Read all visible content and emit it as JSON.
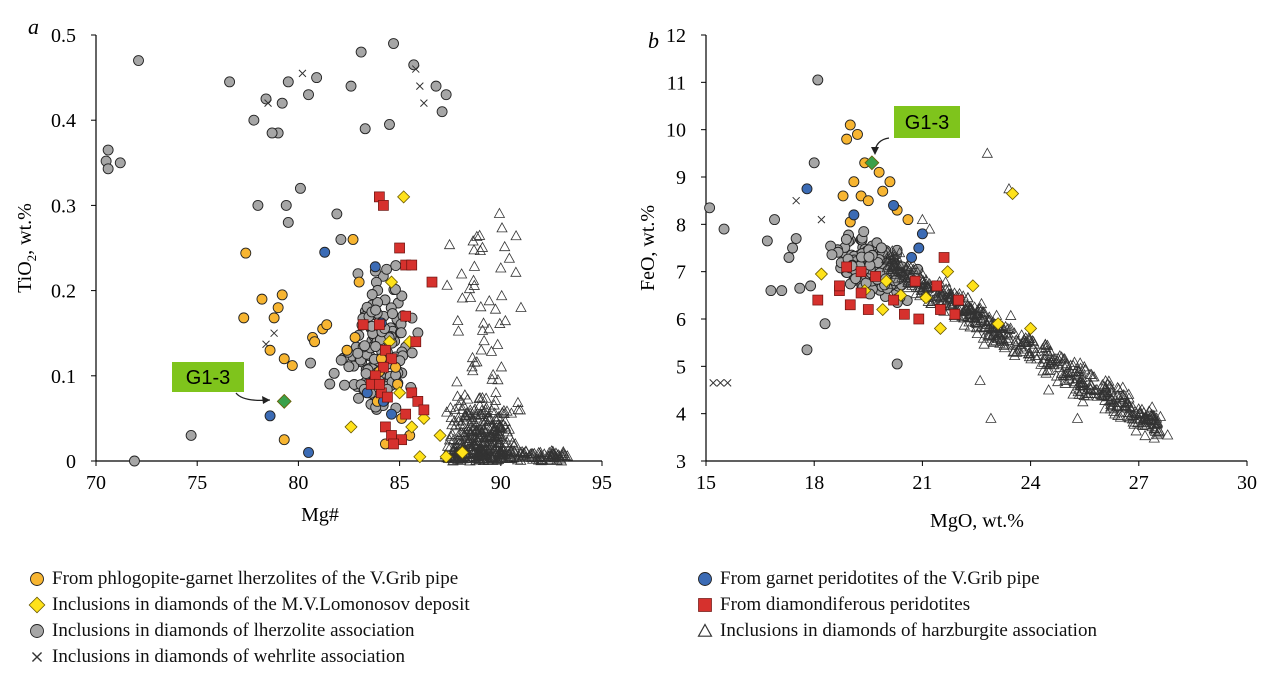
{
  "colors": {
    "orange": "#f7b531",
    "yellow": "#ffe21a",
    "gray": "#a6a6a6",
    "blue": "#3b6bb5",
    "red": "#d6312d",
    "green": "#3aa04a",
    "callout_bg": "#7fc41c",
    "marker_edge": "#222222"
  },
  "panels": [
    {
      "letter": "a",
      "callout": "G1-3",
      "xlabel": "Mg#",
      "ylabel_main": "TiO",
      "ylabel_sub": "2",
      "ylabel_rest": ", wt.%"
    },
    {
      "letter": "b",
      "callout": "G1-3",
      "xlabel": "MgO, wt.%",
      "ylabel_main": "FeO, wt.%",
      "ylabel_sub": "",
      "ylabel_rest": ""
    }
  ],
  "legend": {
    "left": [
      {
        "icon": "orange-circle-icon",
        "marker": "circle",
        "color": "orange",
        "label": "From phlogopite-garnet lherzolites of the V.Grib pipe"
      },
      {
        "icon": "yellow-diamond-icon",
        "marker": "diamond",
        "color": "yellow",
        "label": "Inclusions in diamonds of the M.V.Lomonosov deposit"
      },
      {
        "icon": "gray-circle-icon",
        "marker": "circle",
        "color": "gray",
        "label": "Inclusions in diamonds of lherzolite association"
      },
      {
        "icon": "cross-icon",
        "marker": "cross",
        "color": "marker_edge",
        "label": "Inclusions in diamonds of wehrlite association"
      }
    ],
    "right": [
      {
        "icon": "blue-circle-icon",
        "marker": "circle",
        "color": "blue",
        "label": "From garnet peridotites of the V.Grib pipe"
      },
      {
        "icon": "red-square-icon",
        "marker": "square",
        "color": "red",
        "label": "From diamondiferous peridotites"
      },
      {
        "icon": "triangle-icon",
        "marker": "triangle",
        "color": "marker_edge",
        "label": "Inclusions in diamonds of harzburgite association"
      }
    ]
  },
  "chart_data": [
    {
      "type": "scatter",
      "panel": "a",
      "xlabel": "Mg#",
      "ylabel": "TiO2, wt.%",
      "xlim": [
        70,
        95
      ],
      "ylim": [
        0,
        0.5
      ],
      "xticks": [
        "70",
        "75",
        "80",
        "85",
        "90",
        "95"
      ],
      "yticks": [
        "0",
        "0.1",
        "0.2",
        "0.3",
        "0.4",
        "0.5"
      ],
      "grid": false,
      "series": [
        {
          "name": "From phlogopite-garnet lherzolites of the V.Grib pipe",
          "marker": "circle",
          "color": "orange",
          "points": [
            [
              77.4,
              0.244
            ],
            [
              77.3,
              0.168
            ],
            [
              78.2,
              0.19
            ],
            [
              78.8,
              0.168
            ],
            [
              79.2,
              0.195
            ],
            [
              79.0,
              0.18
            ],
            [
              79.3,
              0.12
            ],
            [
              79.7,
              0.112
            ],
            [
              78.6,
              0.13
            ],
            [
              80.7,
              0.145
            ],
            [
              80.8,
              0.14
            ],
            [
              81.2,
              0.155
            ],
            [
              81.4,
              0.16
            ],
            [
              82.4,
              0.13
            ],
            [
              82.7,
              0.26
            ],
            [
              83.0,
              0.21
            ],
            [
              79.3,
              0.025
            ],
            [
              82.8,
              0.145
            ],
            [
              84.1,
              0.12
            ],
            [
              83.6,
              0.09
            ],
            [
              84.8,
              0.11
            ],
            [
              84.3,
              0.02
            ],
            [
              85.5,
              0.03
            ],
            [
              84.0,
              0.105
            ],
            [
              83.9,
              0.07
            ],
            [
              84.3,
              0.13
            ],
            [
              85.1,
              0.05
            ],
            [
              84.9,
              0.09
            ]
          ]
        },
        {
          "name": "From garnet peridotites of the V.Grib pipe",
          "marker": "circle",
          "color": "blue",
          "points": [
            [
              81.3,
              0.245
            ],
            [
              83.8,
              0.228
            ],
            [
              84.1,
              0.162
            ],
            [
              80.5,
              0.01
            ],
            [
              78.6,
              0.053
            ],
            [
              84.2,
              0.07
            ],
            [
              84.6,
              0.055
            ],
            [
              83.4,
              0.08
            ]
          ]
        },
        {
          "name": "Inclusions in diamonds of the M.V.Lomonosov deposit",
          "marker": "diamond",
          "color": "yellow",
          "points": [
            [
              85.2,
              0.31
            ],
            [
              84.6,
              0.21
            ],
            [
              84.5,
              0.14
            ],
            [
              85.5,
              0.14
            ],
            [
              85.0,
              0.08
            ],
            [
              86.2,
              0.05
            ],
            [
              85.6,
              0.04
            ],
            [
              87.0,
              0.03
            ],
            [
              86.0,
              0.005
            ],
            [
              87.3,
              0.005
            ],
            [
              82.6,
              0.04
            ],
            [
              88.1,
              0.01
            ]
          ]
        },
        {
          "name": "From diamondiferous peridotites",
          "marker": "square",
          "color": "red",
          "points": [
            [
              84.0,
              0.31
            ],
            [
              84.2,
              0.3
            ],
            [
              85.0,
              0.25
            ],
            [
              85.3,
              0.23
            ],
            [
              85.6,
              0.23
            ],
            [
              86.6,
              0.21
            ],
            [
              83.2,
              0.16
            ],
            [
              84.0,
              0.16
            ],
            [
              85.3,
              0.17
            ],
            [
              84.3,
              0.13
            ],
            [
              84.6,
              0.12
            ],
            [
              85.8,
              0.14
            ],
            [
              84.2,
              0.11
            ],
            [
              83.8,
              0.1
            ],
            [
              83.6,
              0.09
            ],
            [
              84.1,
              0.08
            ],
            [
              85.6,
              0.08
            ],
            [
              85.9,
              0.07
            ],
            [
              86.2,
              0.06
            ],
            [
              85.3,
              0.055
            ],
            [
              84.3,
              0.04
            ],
            [
              84.6,
              0.03
            ],
            [
              85.1,
              0.025
            ],
            [
              84.7,
              0.02
            ],
            [
              84.0,
              0.09
            ],
            [
              84.4,
              0.075
            ]
          ]
        },
        {
          "name": "G1-3",
          "marker": "diamond",
          "color": "green",
          "points": [
            [
              79.3,
              0.07
            ]
          ]
        }
      ]
    },
    {
      "type": "scatter",
      "panel": "b",
      "xlabel": "MgO, wt.%",
      "ylabel": "FeO, wt.%",
      "xlim": [
        15,
        30
      ],
      "ylim": [
        3,
        12
      ],
      "xticks": [
        "15",
        "18",
        "21",
        "24",
        "27",
        "30"
      ],
      "yticks": [
        "3",
        "4",
        "5",
        "6",
        "7",
        "8",
        "9",
        "10",
        "11",
        "12"
      ],
      "grid": false,
      "series": [
        {
          "name": "From phlogopite-garnet lherzolites of the V.Grib pipe",
          "marker": "circle",
          "color": "orange",
          "points": [
            [
              19.0,
              10.1
            ],
            [
              19.2,
              9.9
            ],
            [
              19.4,
              9.3
            ],
            [
              19.1,
              8.9
            ],
            [
              19.3,
              8.6
            ],
            [
              19.5,
              8.5
            ],
            [
              19.9,
              8.7
            ],
            [
              20.3,
              8.3
            ],
            [
              20.6,
              8.1
            ],
            [
              19.0,
              8.05
            ],
            [
              19.8,
              9.1
            ],
            [
              20.1,
              8.9
            ],
            [
              18.8,
              8.6
            ],
            [
              18.9,
              9.8
            ]
          ]
        },
        {
          "name": "From garnet peridotites of the V.Grib pipe",
          "marker": "circle",
          "color": "blue",
          "points": [
            [
              17.8,
              8.75
            ],
            [
              19.1,
              8.2
            ],
            [
              20.2,
              8.4
            ],
            [
              21.0,
              7.8
            ],
            [
              20.7,
              7.3
            ],
            [
              20.9,
              7.5
            ]
          ]
        },
        {
          "name": "Inclusions in diamonds of the M.V.Lomonosov deposit",
          "marker": "diamond",
          "color": "yellow",
          "points": [
            [
              23.5,
              8.65
            ],
            [
              18.2,
              6.95
            ],
            [
              19.4,
              6.6
            ],
            [
              20.4,
              6.5
            ],
            [
              21.1,
              6.45
            ],
            [
              21.7,
              7.0
            ],
            [
              22.4,
              6.7
            ],
            [
              21.5,
              5.8
            ],
            [
              23.1,
              5.9
            ],
            [
              24.0,
              5.8
            ],
            [
              20.0,
              6.8
            ],
            [
              19.9,
              6.2
            ]
          ]
        },
        {
          "name": "From diamondiferous peridotites",
          "marker": "square",
          "color": "red",
          "points": [
            [
              18.1,
              6.4
            ],
            [
              18.9,
              7.1
            ],
            [
              19.3,
              7.0
            ],
            [
              19.7,
              6.9
            ],
            [
              18.7,
              6.6
            ],
            [
              19.0,
              6.3
            ],
            [
              19.5,
              6.2
            ],
            [
              20.2,
              6.4
            ],
            [
              20.5,
              6.1
            ],
            [
              20.9,
              6.0
            ],
            [
              21.5,
              6.2
            ],
            [
              21.9,
              6.1
            ],
            [
              21.4,
              6.7
            ],
            [
              22.0,
              6.4
            ],
            [
              21.6,
              7.3
            ],
            [
              20.8,
              6.8
            ],
            [
              19.3,
              6.55
            ],
            [
              18.7,
              6.7
            ]
          ]
        },
        {
          "name": "G1-3",
          "marker": "diamond",
          "color": "green",
          "points": [
            [
              19.6,
              9.3
            ]
          ]
        }
      ]
    }
  ]
}
